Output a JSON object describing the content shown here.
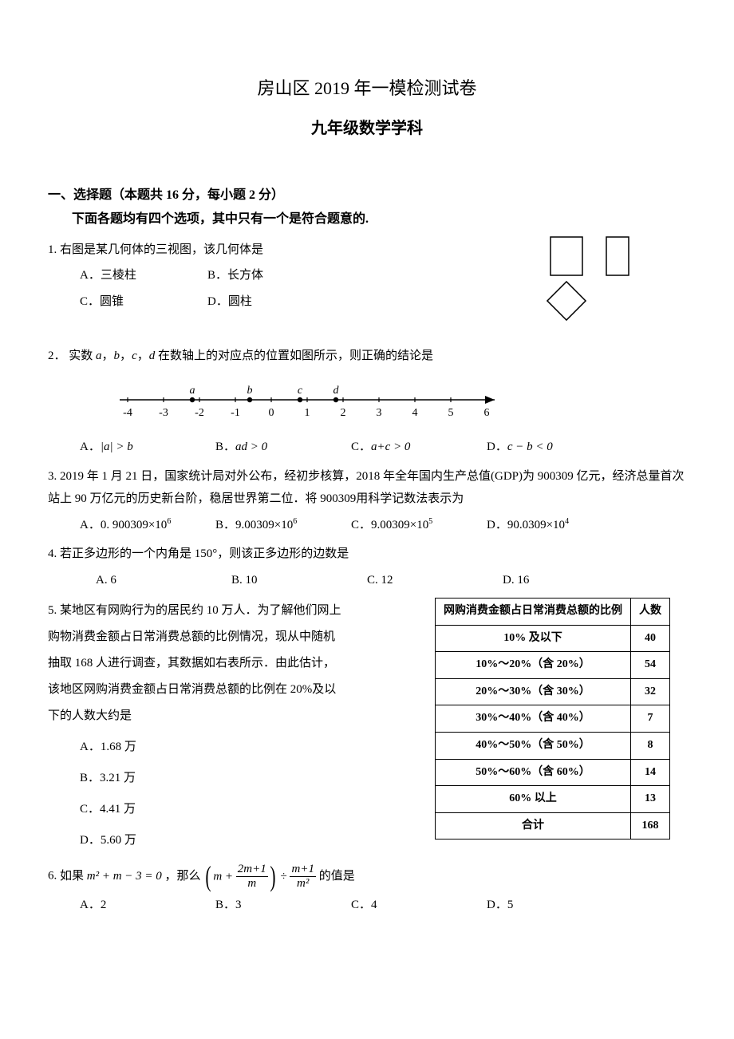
{
  "title": "房山区 2019 年一模检测试卷",
  "subtitle": "九年级数学学科",
  "section1_header": "一、选择题（本题共 16 分，每小题 2 分）",
  "section1_sub": "下面各题均有四个选项，其中只有一个是符合题意的.",
  "q1": {
    "num": "1.",
    "text": "右图是某几何体的三视图，该几何体是",
    "A": "A．三棱柱",
    "B": "B．长方体",
    "C": "C．圆锥",
    "D": "D．圆柱"
  },
  "three_view": {
    "rect_color": "#000000",
    "rect_fill": "#ffffff",
    "rect_stroke_width": 1.5
  },
  "q2": {
    "num": "2．",
    "text_prefix": "实数 ",
    "text_mid": "，",
    "text_suffix": " 在数轴上的对应点的位置如图所示，则正确的结论是",
    "vars": {
      "a": "a",
      "b": "b",
      "c": "c",
      "d": "d"
    },
    "A_label": "A．",
    "A_expr": "|a| > b",
    "B_label": "B．",
    "B_expr": "ad > 0",
    "C_label": "C．",
    "C_expr": "a + c > 0",
    "D_label": "D．",
    "D_expr": "c − b < 0"
  },
  "number_line": {
    "min": -4,
    "max": 6,
    "tick_step": 1,
    "ticks": [
      "-4",
      "-3",
      "-2",
      "-1",
      "0",
      "1",
      "2",
      "3",
      "4",
      "5",
      "6"
    ],
    "points": [
      {
        "label": "a",
        "x": -2.2
      },
      {
        "label": "b",
        "x": -0.6
      },
      {
        "label": "c",
        "x": 0.8
      },
      {
        "label": "d",
        "x": 1.8
      }
    ],
    "line_color": "#000000",
    "point_color": "#000000",
    "font_size": 14
  },
  "q3": {
    "num": "3.",
    "text": "2019 年 1 月 21 日，国家统计局对外公布，经初步核算，2018 年全年国内生产总值(GDP)为 900309 亿元，经济总量首次站上 90 万亿元的历史新台阶，稳居世界第二位．将 900309用科学记数法表示为",
    "A_label": "A．",
    "A_val": "0. 900309×10",
    "A_exp": "6",
    "B_label": "B．",
    "B_val": "9.00309×10",
    "B_exp": "6",
    "C_label": "C．",
    "C_val": "9.00309×10",
    "C_exp": "5",
    "D_label": "D．",
    "D_val": "90.0309×10",
    "D_exp": "4"
  },
  "q4": {
    "num": "4.",
    "text": "若正多边形的一个内角是 150°，则该正多边形的边数是",
    "A": "A. 6",
    "B": "B. 10",
    "C": "C. 12",
    "D": "D. 16"
  },
  "q5": {
    "num": "5.",
    "text": "某地区有网购行为的居民约 10 万人．为了解他们网上购物消费金额占日常消费总额的比例情况，现从中随机抽取 168 人进行调查，其数据如右表所示．由此估计，该地区网购消费金额占日常消费总额的比例在 20%及以下的人数大约是",
    "A": "A．1.68 万",
    "B": "B．3.21 万",
    "C": "C．4.41 万",
    "D": "D．5.60 万",
    "table": {
      "header1": "网购消费金额占日常消费总额的比例",
      "header2": "人数",
      "rows": [
        [
          "10% 及以下",
          "40"
        ],
        [
          "10%～20%（含 20%）",
          "54"
        ],
        [
          "20%～30%（含 30%）",
          "32"
        ],
        [
          "30%～40%（含 40%）",
          "7"
        ],
        [
          "40%～50%（含 50%）",
          "8"
        ],
        [
          "50%～60%（含 60%）",
          "14"
        ],
        [
          "60% 以上",
          "13"
        ],
        [
          "合计",
          "168"
        ]
      ]
    }
  },
  "q6": {
    "num": "6.",
    "text_prefix": "如果 ",
    "eq": "m² + m − 3 = 0",
    "text_mid": " ，那么",
    "frac1_num": "2m+1",
    "frac1_den": "m",
    "mid_op": "÷",
    "frac2_num": "m+1",
    "frac2_den": "m²",
    "text_suffix": " 的值是",
    "m_plus": "m +",
    "A": "A．2",
    "B": "B．3",
    "C": "C．4",
    "D": "D．5"
  }
}
